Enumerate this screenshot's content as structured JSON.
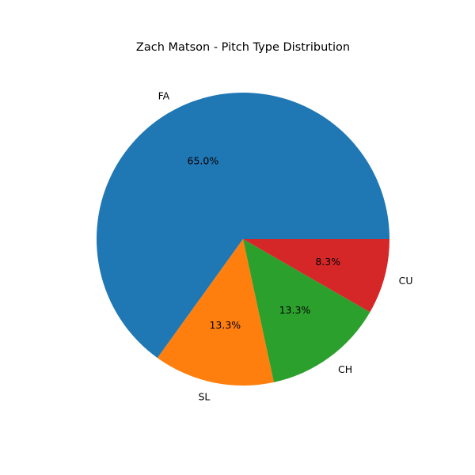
{
  "chart_data": {
    "type": "pie",
    "title": "Zach Matson - Pitch Type Distribution",
    "categories": [
      "FA",
      "SL",
      "CH",
      "CU"
    ],
    "values": [
      65.0,
      13.3,
      13.3,
      8.3
    ],
    "value_labels": [
      "65.0%",
      "13.3%",
      "13.3%",
      "8.3%"
    ],
    "colors": [
      "#1f77b4",
      "#ff7f0e",
      "#2ca02c",
      "#d62728"
    ],
    "start_angle_deg": 0,
    "direction": "counterclockwise",
    "legend": "none"
  }
}
